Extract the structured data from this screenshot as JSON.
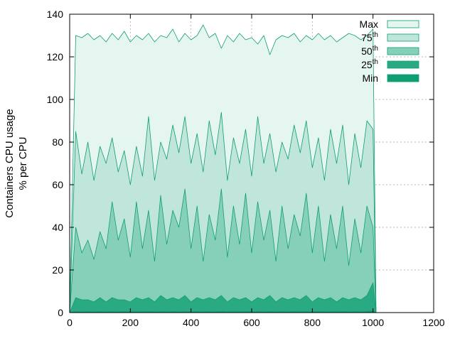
{
  "chart_data": {
    "type": "area",
    "title": "",
    "ylabel_lines": [
      "Containers CPU usage",
      "% per CPU"
    ],
    "xlabel": "",
    "xlim": [
      0,
      1200
    ],
    "ylim": [
      0,
      140
    ],
    "xticks": [
      0,
      200,
      400,
      600,
      800,
      1000,
      1200
    ],
    "yticks": [
      0,
      20,
      40,
      60,
      80,
      100,
      120,
      140
    ],
    "grid": true,
    "legend_position": "top-right",
    "x": [
      0,
      20,
      40,
      60,
      80,
      100,
      120,
      140,
      160,
      180,
      200,
      220,
      240,
      260,
      280,
      300,
      320,
      340,
      360,
      380,
      400,
      420,
      440,
      460,
      480,
      500,
      520,
      540,
      560,
      580,
      600,
      620,
      640,
      660,
      680,
      700,
      720,
      740,
      760,
      780,
      800,
      820,
      840,
      860,
      880,
      900,
      920,
      940,
      960,
      980,
      1000,
      1010
    ],
    "series": [
      {
        "name": "Max",
        "sup": "",
        "color": "#e5f5f0",
        "values": [
          0,
          130,
          129,
          131,
          128,
          130,
          127,
          131,
          128,
          132,
          127,
          130,
          128,
          131,
          127,
          130,
          129,
          133,
          127,
          131,
          128,
          130,
          135,
          129,
          131,
          124,
          130,
          127,
          131,
          128,
          129,
          126,
          130,
          121,
          128,
          130,
          129,
          131,
          127,
          130,
          128,
          131,
          128,
          130,
          127,
          129,
          131,
          130,
          128,
          130,
          133,
          0
        ]
      },
      {
        "name": "75",
        "sup": "th",
        "color": "#c0e6dc",
        "values": [
          0,
          85,
          65,
          80,
          62,
          78,
          70,
          82,
          66,
          76,
          60,
          78,
          64,
          92,
          62,
          80,
          72,
          88,
          75,
          92,
          70,
          84,
          66,
          90,
          74,
          94,
          62,
          82,
          70,
          86,
          64,
          92,
          70,
          84,
          66,
          80,
          72,
          88,
          75,
          90,
          68,
          82,
          62,
          86,
          70,
          88,
          60,
          84,
          68,
          90,
          86,
          0
        ]
      },
      {
        "name": "50",
        "sup": "th",
        "color": "#86cfb8",
        "values": [
          0,
          40,
          28,
          34,
          25,
          38,
          30,
          52,
          34,
          44,
          26,
          52,
          30,
          48,
          24,
          55,
          32,
          48,
          40,
          58,
          30,
          50,
          24,
          46,
          34,
          58,
          26,
          50,
          32,
          56,
          28,
          52,
          34,
          48,
          24,
          50,
          30,
          46,
          36,
          56,
          28,
          50,
          24,
          46,
          30,
          50,
          22,
          44,
          28,
          50,
          40,
          0
        ]
      },
      {
        "name": "25",
        "sup": "th",
        "color": "#2aaa83",
        "values": [
          0,
          7,
          6,
          6,
          5,
          7,
          5,
          7,
          6,
          6,
          5,
          7,
          6,
          7,
          5,
          8,
          6,
          7,
          6,
          8,
          5,
          7,
          6,
          7,
          6,
          8,
          5,
          7,
          6,
          7,
          5,
          7,
          6,
          8,
          5,
          7,
          6,
          7,
          6,
          8,
          5,
          7,
          6,
          7,
          5,
          7,
          6,
          7,
          6,
          8,
          14,
          0
        ]
      },
      {
        "name": "Min",
        "sup": "",
        "color": "#0e9e72",
        "values": [
          0,
          0.5,
          0.3,
          0.4,
          0.3,
          0.5,
          0.3,
          0.4,
          0.3,
          0.5,
          0.3,
          0.4,
          0.3,
          0.5,
          0.3,
          0.4,
          0.3,
          0.5,
          0.3,
          0.4,
          0.3,
          0.5,
          0.3,
          0.4,
          0.3,
          0.5,
          0.3,
          0.4,
          0.3,
          0.5,
          0.3,
          0.4,
          0.3,
          0.5,
          0.3,
          0.4,
          0.3,
          0.5,
          0.3,
          0.4,
          0.3,
          0.5,
          0.3,
          0.4,
          0.3,
          0.5,
          0.3,
          0.4,
          0.3,
          0.5,
          1,
          0
        ]
      }
    ],
    "line_color": "#0e9e72"
  }
}
